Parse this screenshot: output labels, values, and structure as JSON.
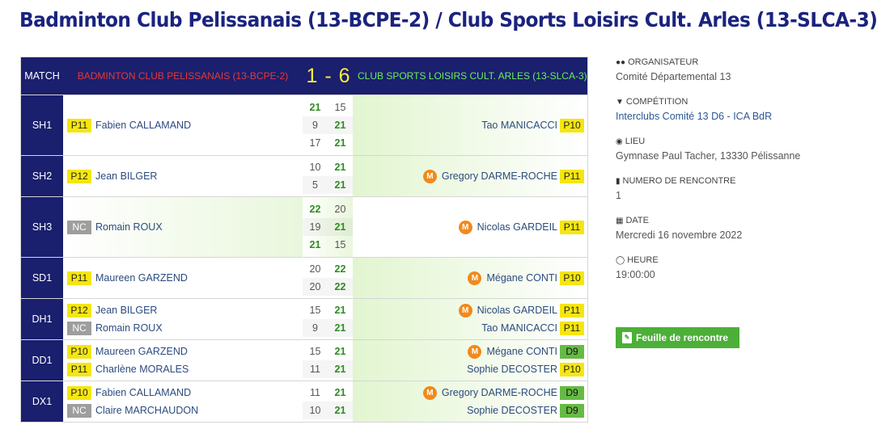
{
  "title": "Badminton Club Pelissanais (13-BCPE-2) / Club Sports Loisirs Cult. Arles (13-SLCA-3)",
  "header": {
    "match_label": "MATCH",
    "home_team": "BADMINTON CLUB PELISSANAIS (13-BCPE-2)",
    "score": "1 - 6",
    "away_team": "CLUB SPORTS LOISIRS CULT. ARLES (13-SLCA-3)"
  },
  "matches": [
    {
      "label": "SH1",
      "winner": "away",
      "home": [
        {
          "rank": "P11",
          "rank_color": "yellow",
          "name": "Fabien CALLAMAND"
        }
      ],
      "away": [
        {
          "rank": "P10",
          "rank_color": "yellow",
          "name": "Tao MANICACCI",
          "m": false
        }
      ],
      "sets": [
        [
          "21",
          "15"
        ],
        [
          "9",
          "21"
        ],
        [
          "17",
          "21"
        ]
      ],
      "set_winners": [
        "h",
        "a",
        "a"
      ]
    },
    {
      "label": "SH2",
      "winner": "away",
      "home": [
        {
          "rank": "P12",
          "rank_color": "yellow",
          "name": "Jean BILGER"
        }
      ],
      "away": [
        {
          "rank": "P11",
          "rank_color": "yellow",
          "name": "Gregory DARME-ROCHE",
          "m": true
        }
      ],
      "sets": [
        [
          "10",
          "21"
        ],
        [
          "5",
          "21"
        ]
      ],
      "set_winners": [
        "a",
        "a"
      ]
    },
    {
      "label": "SH3",
      "winner": "home",
      "home": [
        {
          "rank": "NC",
          "rank_color": "gray",
          "name": "Romain ROUX"
        }
      ],
      "away": [
        {
          "rank": "P11",
          "rank_color": "yellow",
          "name": "Nicolas GARDEIL",
          "m": true
        }
      ],
      "sets": [
        [
          "22",
          "20"
        ],
        [
          "19",
          "21"
        ],
        [
          "21",
          "15"
        ]
      ],
      "set_winners": [
        "h",
        "a",
        "h"
      ]
    },
    {
      "label": "SD1",
      "winner": "away",
      "home": [
        {
          "rank": "P11",
          "rank_color": "yellow",
          "name": "Maureen GARZEND"
        }
      ],
      "away": [
        {
          "rank": "P10",
          "rank_color": "yellow",
          "name": "Mégane CONTI",
          "m": true
        }
      ],
      "sets": [
        [
          "20",
          "22"
        ],
        [
          "20",
          "22"
        ]
      ],
      "set_winners": [
        "a",
        "a"
      ]
    },
    {
      "label": "DH1",
      "winner": "away",
      "home": [
        {
          "rank": "P12",
          "rank_color": "yellow",
          "name": "Jean BILGER"
        },
        {
          "rank": "NC",
          "rank_color": "gray",
          "name": "Romain ROUX"
        }
      ],
      "away": [
        {
          "rank": "P11",
          "rank_color": "yellow",
          "name": "Nicolas GARDEIL",
          "m": true
        },
        {
          "rank": "P11",
          "rank_color": "yellow",
          "name": "Tao MANICACCI",
          "m": false
        }
      ],
      "sets": [
        [
          "15",
          "21"
        ],
        [
          "9",
          "21"
        ]
      ],
      "set_winners": [
        "a",
        "a"
      ]
    },
    {
      "label": "DD1",
      "winner": "away",
      "home": [
        {
          "rank": "P10",
          "rank_color": "yellow",
          "name": "Maureen GARZEND"
        },
        {
          "rank": "P11",
          "rank_color": "yellow",
          "name": "Charlène MORALES"
        }
      ],
      "away": [
        {
          "rank": "D9",
          "rank_color": "green",
          "name": "Mégane CONTI",
          "m": true
        },
        {
          "rank": "P10",
          "rank_color": "yellow",
          "name": "Sophie DECOSTER",
          "m": false
        }
      ],
      "sets": [
        [
          "15",
          "21"
        ],
        [
          "11",
          "21"
        ]
      ],
      "set_winners": [
        "a",
        "a"
      ]
    },
    {
      "label": "DX1",
      "winner": "away",
      "home": [
        {
          "rank": "P10",
          "rank_color": "yellow",
          "name": "Fabien CALLAMAND"
        },
        {
          "rank": "NC",
          "rank_color": "gray",
          "name": "Claire MARCHAUDON"
        }
      ],
      "away": [
        {
          "rank": "D9",
          "rank_color": "green",
          "name": "Gregory DARME-ROCHE",
          "m": true
        },
        {
          "rank": "D9",
          "rank_color": "green",
          "name": "Sophie DECOSTER",
          "m": false
        }
      ],
      "sets": [
        [
          "11",
          "21"
        ],
        [
          "10",
          "21"
        ]
      ],
      "set_winners": [
        "a",
        "a"
      ]
    }
  ],
  "m_badge_text": "M",
  "sidebar": {
    "organisateur": {
      "icon": "users-icon",
      "label": "ORGANISATEUR",
      "value": "Comité Départemental 13"
    },
    "competition": {
      "icon": "trophy-icon",
      "label": "COMPÉTITION",
      "value": "Interclubs Comité 13 D6 - ICA BdR"
    },
    "lieu": {
      "icon": "map-marker-icon",
      "label": "LIEU",
      "value": "Gymnase Paul Tacher, 13330 Pélissanne"
    },
    "numero": {
      "icon": "bookmark-icon",
      "label": "NUMERO DE RENCONTRE",
      "value": "1"
    },
    "date": {
      "icon": "calendar-icon",
      "label": "DATE",
      "value": "Mercredi 16 novembre 2022"
    },
    "heure": {
      "icon": "clock-icon",
      "label": "HEURE",
      "value": "19:00:00"
    },
    "button": {
      "icon": "pdf-icon",
      "label": "Feuille de rencontre"
    }
  }
}
